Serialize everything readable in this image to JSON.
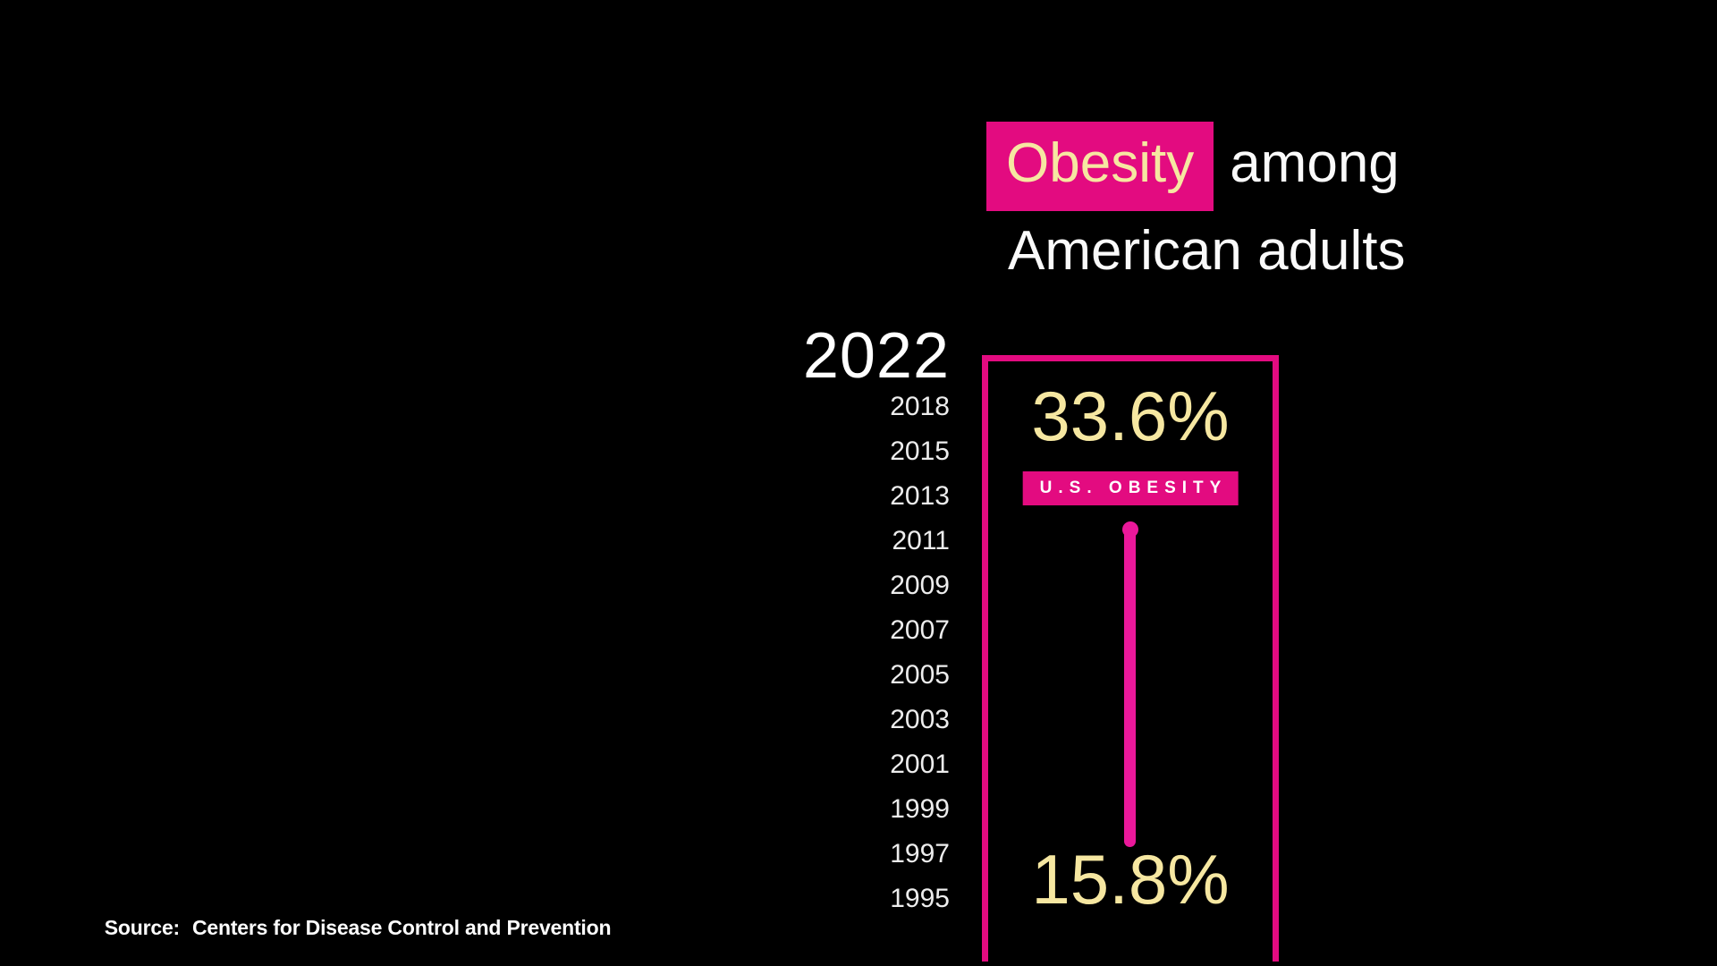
{
  "colors": {
    "background": "#000000",
    "pink": "#e30b80",
    "lollipop": "#ea189a",
    "yellow": "#f6e7a1",
    "white": "#ffffff"
  },
  "title": {
    "highlight": "Obesity",
    "rest": "among",
    "line2": "American adults"
  },
  "ticker": {
    "current_year": "2022",
    "years": [
      "2018",
      "2015",
      "2013",
      "2011",
      "2009",
      "2007",
      "2005",
      "2003",
      "2001",
      "1999",
      "1997",
      "1995"
    ]
  },
  "panel": {
    "current_value": "33.6%",
    "series_label": "U.S. OBESITY",
    "baseline_value": "15.8%"
  },
  "source": {
    "prefix": "Source:",
    "text": "Centers for Disease Control and Prevention"
  },
  "chart_data": {
    "type": "bar",
    "subtype": "animated-lollipop-race-frame",
    "title": "Obesity among American adults",
    "series": [
      {
        "name": "U.S. OBESITY",
        "x": [
          1995,
          2022
        ],
        "values": [
          15.8,
          33.6
        ],
        "unit": "%"
      }
    ],
    "current_year": 2022,
    "current_value": 33.6,
    "baseline_value": 15.8,
    "year_ticker": [
      2018,
      2015,
      2013,
      2011,
      2009,
      2007,
      2005,
      2003,
      2001,
      1999,
      1997,
      1995
    ],
    "value_axis_range": [
      15.8,
      33.6
    ],
    "grid": false,
    "legend_position": "none",
    "source": "Centers for Disease Control and Prevention"
  }
}
